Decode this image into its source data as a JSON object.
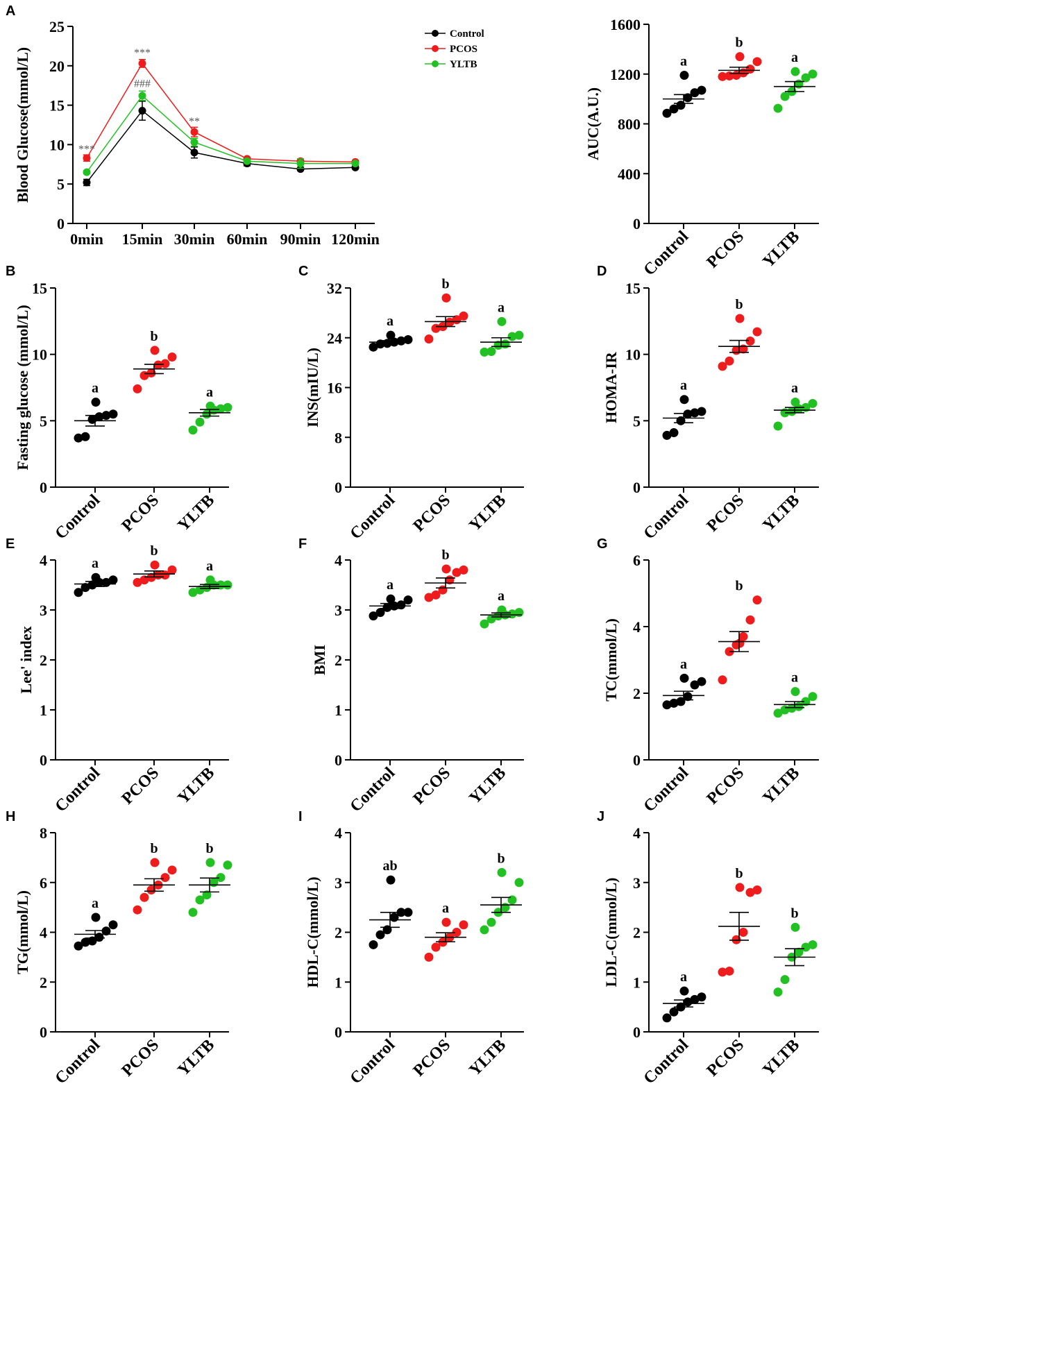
{
  "colors": {
    "Control": "#000000",
    "PCOS": "#ee1c1c",
    "YLTB": "#22c022",
    "axis": "#000000"
  },
  "chart_data": [
    {
      "id": "A-line",
      "panel_label": "A",
      "type": "line",
      "ylabel": "Blood  Glucose(mmol/L)",
      "xlabel": "",
      "categories": [
        "0min",
        "15min",
        "30min",
        "60min",
        "90min",
        "120min"
      ],
      "ylim": [
        0,
        25
      ],
      "yticks": [
        0,
        5,
        10,
        15,
        20,
        25
      ],
      "legend": {
        "position": "top-right",
        "entries": [
          "Control",
          "PCOS",
          "YLTB"
        ]
      },
      "series": [
        {
          "name": "Control",
          "values": [
            5.2,
            14.3,
            9.0,
            7.6,
            6.9,
            7.1
          ],
          "errors": [
            0.4,
            1.2,
            0.7,
            0.3,
            0.2,
            0.2
          ]
        },
        {
          "name": "PCOS",
          "values": [
            8.3,
            20.3,
            11.6,
            8.2,
            7.9,
            7.8
          ],
          "errors": [
            0.4,
            0.5,
            0.6,
            0.2,
            0.2,
            0.2
          ]
        },
        {
          "name": "YLTB",
          "values": [
            6.5,
            16.2,
            10.3,
            7.9,
            7.6,
            7.6
          ],
          "errors": [
            0.2,
            0.6,
            0.5,
            0.2,
            0.6,
            0.2
          ]
        }
      ],
      "annotations": [
        {
          "text": "***",
          "x": "0min",
          "y": 9.0,
          "color": "gray"
        },
        {
          "text": "***",
          "x": "15min",
          "y": 21.2,
          "color": "gray"
        },
        {
          "text": "###",
          "x": "15min",
          "y": 17.3,
          "color": "gray"
        },
        {
          "text": "**",
          "x": "30min",
          "y": 12.5,
          "color": "gray"
        }
      ]
    },
    {
      "id": "A-auc",
      "panel_label": "",
      "type": "scatter",
      "ylabel": "AUC(A.U.)",
      "xlabel": "",
      "categories": [
        "Control",
        "PCOS",
        "YLTB"
      ],
      "ylim": [
        0,
        1600
      ],
      "yticks": [
        0,
        400,
        800,
        1200,
        1600
      ],
      "groups": [
        {
          "name": "Control",
          "points": [
            885,
            920,
            950,
            1010,
            1050,
            1070,
            1190
          ],
          "mean": 1000,
          "sem": 35,
          "letter": "a"
        },
        {
          "name": "PCOS",
          "points": [
            1180,
            1185,
            1190,
            1210,
            1240,
            1300,
            1340
          ],
          "mean": 1230,
          "sem": 25,
          "letter": "b"
        },
        {
          "name": "YLTB",
          "points": [
            925,
            1020,
            1060,
            1120,
            1170,
            1200,
            1220
          ],
          "mean": 1100,
          "sem": 40,
          "letter": "a"
        }
      ]
    },
    {
      "id": "B",
      "panel_label": "B",
      "type": "scatter",
      "ylabel": "Fasting glucose (mmol/L)",
      "xlabel": "",
      "categories": [
        "Control",
        "PCOS",
        "YLTB"
      ],
      "ylim": [
        0,
        15
      ],
      "yticks": [
        0,
        5,
        10,
        15
      ],
      "groups": [
        {
          "name": "Control",
          "points": [
            3.7,
            3.8,
            5.1,
            5.3,
            5.4,
            5.5,
            6.4
          ],
          "mean": 5.0,
          "sem": 0.4,
          "letter": "a"
        },
        {
          "name": "PCOS",
          "points": [
            7.4,
            8.4,
            8.6,
            9.2,
            9.3,
            9.8,
            10.3
          ],
          "mean": 8.9,
          "sem": 0.35,
          "letter": "b"
        },
        {
          "name": "YLTB",
          "points": [
            4.3,
            4.9,
            5.5,
            5.8,
            5.9,
            6.0,
            6.1
          ],
          "mean": 5.6,
          "sem": 0.25,
          "letter": "a"
        }
      ]
    },
    {
      "id": "C",
      "panel_label": "C",
      "type": "scatter",
      "ylabel": "INS(mIU/L)",
      "xlabel": "",
      "categories": [
        "Control",
        "PCOS",
        "YLTB"
      ],
      "ylim": [
        0,
        32
      ],
      "yticks": [
        0,
        8,
        16,
        24,
        32
      ],
      "groups": [
        {
          "name": "Control",
          "points": [
            22.5,
            23.0,
            23.1,
            23.3,
            23.5,
            23.7,
            24.4
          ],
          "mean": 23.3,
          "sem": 0.25,
          "letter": "a"
        },
        {
          "name": "PCOS",
          "points": [
            23.8,
            25.5,
            25.8,
            26.5,
            26.9,
            27.5,
            30.4
          ],
          "mean": 26.6,
          "sem": 0.8,
          "letter": "b"
        },
        {
          "name": "YLTB",
          "points": [
            21.7,
            21.8,
            22.8,
            23.0,
            24.2,
            24.4,
            26.6
          ],
          "mean": 23.3,
          "sem": 0.7,
          "letter": "a"
        }
      ]
    },
    {
      "id": "D",
      "panel_label": "D",
      "type": "scatter",
      "ylabel": "HOMA-IR",
      "xlabel": "",
      "categories": [
        "Control",
        "PCOS",
        "YLTB"
      ],
      "ylim": [
        0,
        15
      ],
      "yticks": [
        0,
        5,
        10,
        15
      ],
      "groups": [
        {
          "name": "Control",
          "points": [
            3.9,
            4.1,
            5.0,
            5.5,
            5.6,
            5.7,
            6.6
          ],
          "mean": 5.2,
          "sem": 0.35,
          "letter": "a"
        },
        {
          "name": "PCOS",
          "points": [
            9.1,
            9.5,
            10.3,
            10.4,
            11.0,
            11.7,
            12.7
          ],
          "mean": 10.6,
          "sem": 0.45,
          "letter": "b"
        },
        {
          "name": "YLTB",
          "points": [
            4.6,
            5.6,
            5.7,
            5.9,
            6.0,
            6.3,
            6.4
          ],
          "mean": 5.8,
          "sem": 0.2,
          "letter": "a"
        }
      ]
    },
    {
      "id": "E",
      "panel_label": "E",
      "type": "scatter",
      "ylabel": "Lee' index",
      "xlabel": "",
      "categories": [
        "Control",
        "PCOS",
        "YLTB"
      ],
      "ylim": [
        0,
        4
      ],
      "yticks": [
        0,
        1,
        2,
        3,
        4
      ],
      "groups": [
        {
          "name": "Control",
          "points": [
            3.35,
            3.45,
            3.5,
            3.55,
            3.55,
            3.6,
            3.65
          ],
          "mean": 3.52,
          "sem": 0.05,
          "letter": "a"
        },
        {
          "name": "PCOS",
          "points": [
            3.55,
            3.6,
            3.65,
            3.7,
            3.7,
            3.8,
            3.9
          ],
          "mean": 3.72,
          "sem": 0.06,
          "letter": "b"
        },
        {
          "name": "YLTB",
          "points": [
            3.35,
            3.4,
            3.45,
            3.5,
            3.5,
            3.5,
            3.6
          ],
          "mean": 3.47,
          "sem": 0.04,
          "letter": "a"
        }
      ]
    },
    {
      "id": "F",
      "panel_label": "F",
      "type": "scatter",
      "ylabel": "BMI",
      "xlabel": "",
      "categories": [
        "Control",
        "PCOS",
        "YLTB"
      ],
      "ylim": [
        0,
        4
      ],
      "yticks": [
        0,
        1,
        2,
        3,
        4
      ],
      "groups": [
        {
          "name": "Control",
          "points": [
            2.88,
            2.95,
            3.05,
            3.08,
            3.1,
            3.2,
            3.22
          ],
          "mean": 3.08,
          "sem": 0.05,
          "letter": "a"
        },
        {
          "name": "PCOS",
          "points": [
            3.25,
            3.3,
            3.4,
            3.6,
            3.75,
            3.8,
            3.82
          ],
          "mean": 3.54,
          "sem": 0.1,
          "letter": "b"
        },
        {
          "name": "YLTB",
          "points": [
            2.72,
            2.82,
            2.88,
            2.9,
            2.92,
            2.95,
            3.0
          ],
          "mean": 2.9,
          "sem": 0.04,
          "letter": "a"
        }
      ]
    },
    {
      "id": "G",
      "panel_label": "G",
      "type": "scatter",
      "ylabel": "TC(mmol/L)",
      "xlabel": "",
      "categories": [
        "Control",
        "PCOS",
        "YLTB"
      ],
      "ylim": [
        0,
        6
      ],
      "yticks": [
        0,
        2,
        4,
        6
      ],
      "groups": [
        {
          "name": "Control",
          "points": [
            1.65,
            1.7,
            1.75,
            1.9,
            2.25,
            2.35,
            2.45
          ],
          "mean": 1.93,
          "sem": 0.13,
          "letter": "a"
        },
        {
          "name": "PCOS",
          "points": [
            2.4,
            3.25,
            3.45,
            3.7,
            4.2,
            4.8,
            3.5
          ],
          "mean": 3.55,
          "sem": 0.3,
          "letter": "b"
        },
        {
          "name": "YLTB",
          "points": [
            1.4,
            1.5,
            1.55,
            1.6,
            1.75,
            1.9,
            2.05
          ],
          "mean": 1.66,
          "sem": 0.09,
          "letter": "a"
        }
      ]
    },
    {
      "id": "H",
      "panel_label": "H",
      "type": "scatter",
      "ylabel": "TG(mmol/L)",
      "xlabel": "",
      "categories": [
        "Control",
        "PCOS",
        "YLTB"
      ],
      "ylim": [
        0,
        8
      ],
      "yticks": [
        0,
        2,
        4,
        6,
        8
      ],
      "groups": [
        {
          "name": "Control",
          "points": [
            3.45,
            3.6,
            3.65,
            3.8,
            4.05,
            4.3,
            4.6
          ],
          "mean": 3.92,
          "sem": 0.15,
          "letter": "a"
        },
        {
          "name": "PCOS",
          "points": [
            4.9,
            5.4,
            5.7,
            5.9,
            6.2,
            6.5,
            6.8
          ],
          "mean": 5.9,
          "sem": 0.25,
          "letter": "b"
        },
        {
          "name": "YLTB",
          "points": [
            4.8,
            5.3,
            5.5,
            6.0,
            6.2,
            6.7,
            6.8
          ],
          "mean": 5.9,
          "sem": 0.28,
          "letter": "b"
        }
      ]
    },
    {
      "id": "I",
      "panel_label": "I",
      "type": "scatter",
      "ylabel": "HDL-C(mmol/L)",
      "xlabel": "",
      "categories": [
        "Control",
        "PCOS",
        "YLTB"
      ],
      "ylim": [
        0,
        4
      ],
      "yticks": [
        0,
        1,
        2,
        3,
        4
      ],
      "groups": [
        {
          "name": "Control",
          "points": [
            1.75,
            1.95,
            2.05,
            2.3,
            2.4,
            2.4,
            3.05
          ],
          "mean": 2.25,
          "sem": 0.15,
          "letter": "ab"
        },
        {
          "name": "PCOS",
          "points": [
            1.5,
            1.7,
            1.8,
            1.9,
            2.0,
            2.15,
            2.2
          ],
          "mean": 1.9,
          "sem": 0.09,
          "letter": "a"
        },
        {
          "name": "YLTB",
          "points": [
            2.05,
            2.2,
            2.4,
            2.5,
            2.65,
            3.0,
            3.2
          ],
          "mean": 2.55,
          "sem": 0.15,
          "letter": "b"
        }
      ]
    },
    {
      "id": "J",
      "panel_label": "J",
      "type": "scatter",
      "ylabel": "LDL-C(mmol/L)",
      "xlabel": "",
      "categories": [
        "Control",
        "PCOS",
        "YLTB"
      ],
      "ylim": [
        0,
        4
      ],
      "yticks": [
        0,
        1,
        2,
        3,
        4
      ],
      "groups": [
        {
          "name": "Control",
          "points": [
            0.28,
            0.4,
            0.5,
            0.6,
            0.65,
            0.7,
            0.82
          ],
          "mean": 0.57,
          "sem": 0.07,
          "letter": "a"
        },
        {
          "name": "PCOS",
          "points": [
            1.2,
            1.22,
            1.85,
            2.0,
            2.8,
            2.85,
            2.9
          ],
          "mean": 2.12,
          "sem": 0.28,
          "letter": "b"
        },
        {
          "name": "YLTB",
          "points": [
            0.8,
            1.05,
            1.5,
            1.6,
            1.7,
            1.75,
            2.1
          ],
          "mean": 1.5,
          "sem": 0.17,
          "letter": "b"
        }
      ]
    }
  ]
}
